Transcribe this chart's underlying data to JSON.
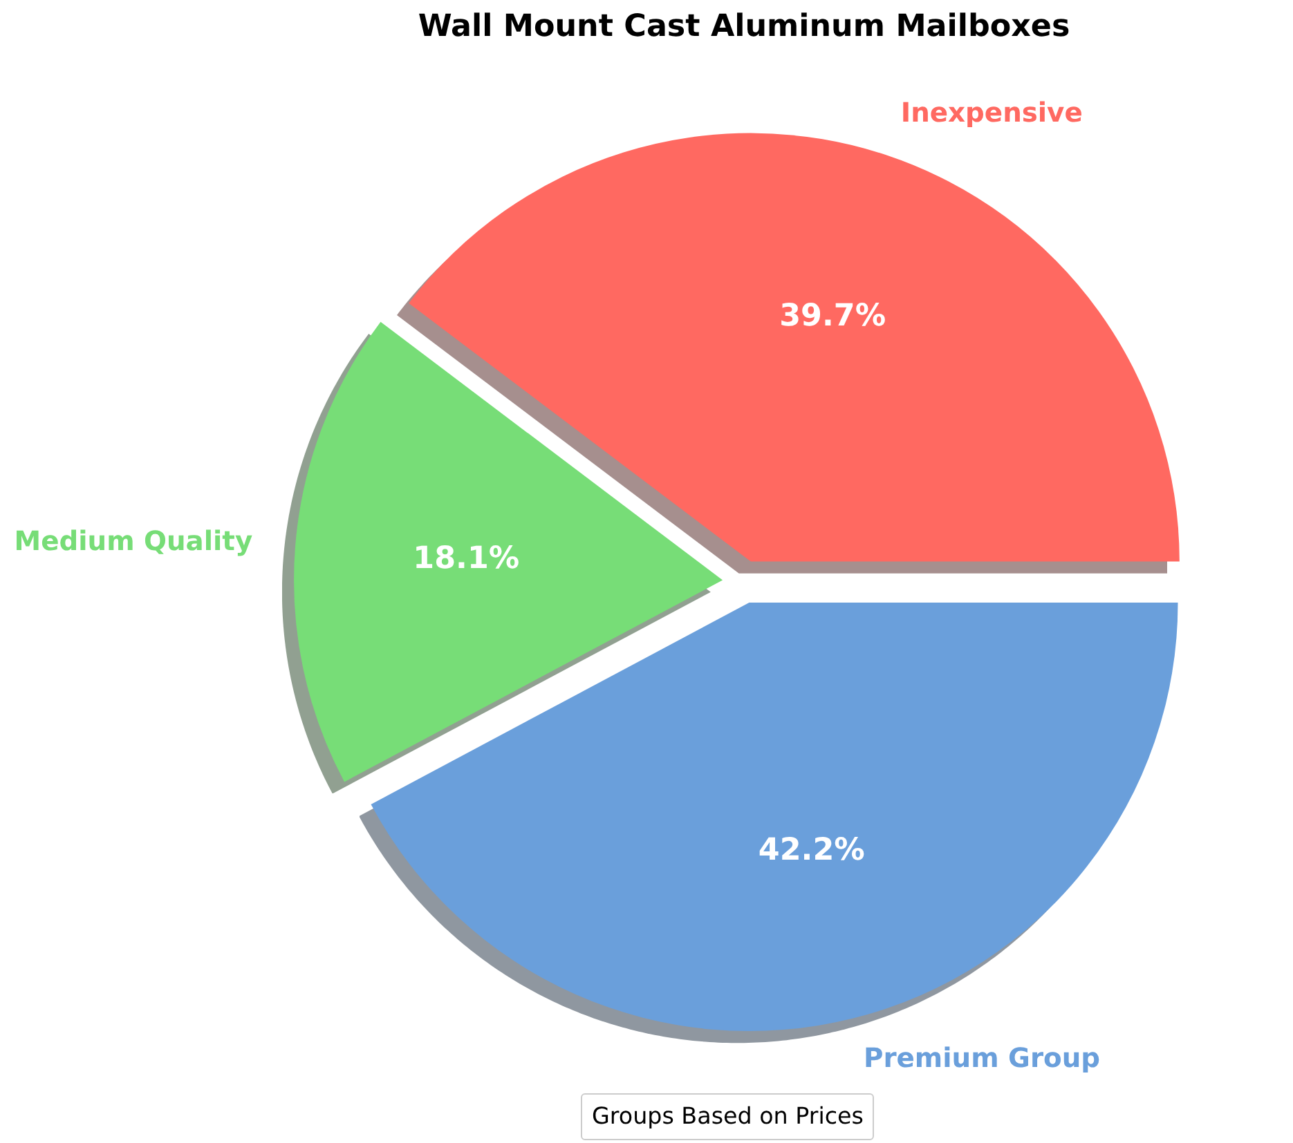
{
  "chart_data": {
    "type": "pie",
    "title": "Wall Mount Cast Aluminum Mailboxes",
    "categories": [
      "Inexpensive",
      "Medium Quality",
      "Premium Group"
    ],
    "values": [
      39.7,
      18.1,
      42.2
    ],
    "colors": [
      "#ff6961",
      "#77dd77",
      "#6a9fdb"
    ],
    "value_labels": [
      "39.7%",
      "18.1%",
      "42.2%"
    ],
    "legend_title": "Groups Based on Prices"
  }
}
